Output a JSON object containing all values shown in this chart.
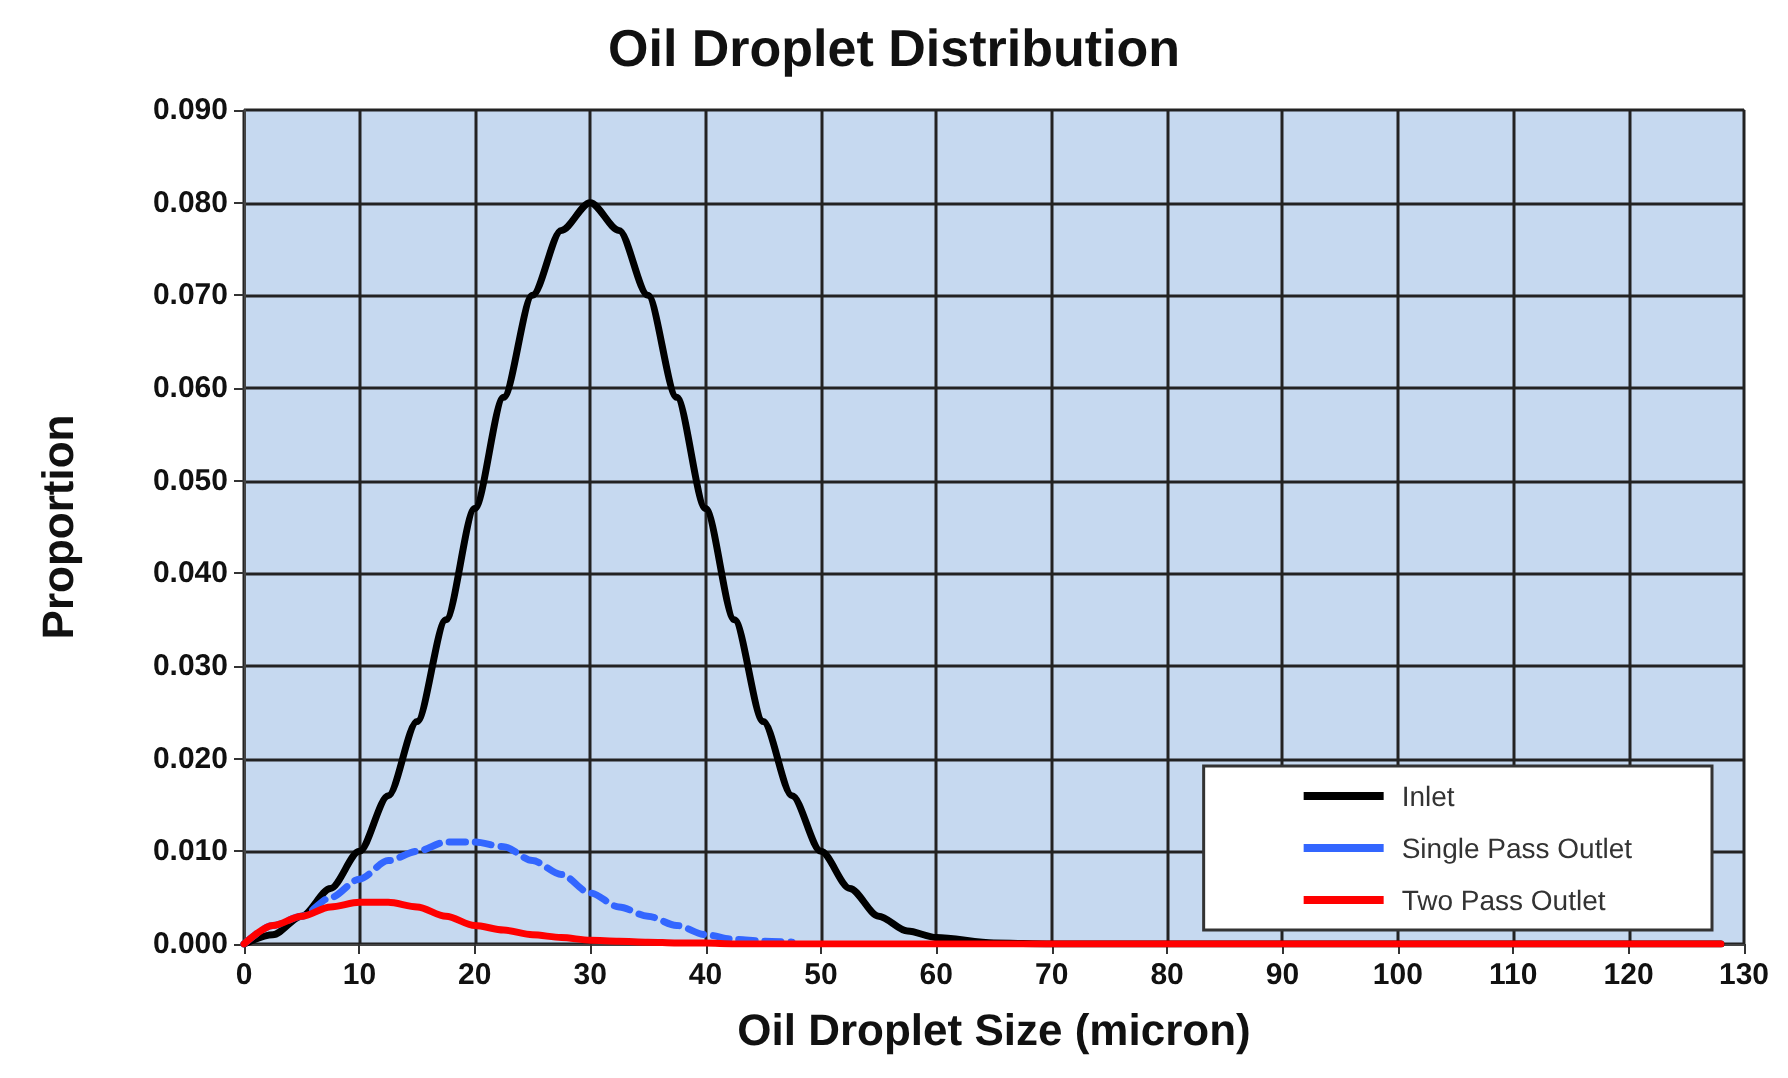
{
  "chart_data": {
    "type": "line",
    "title": "Oil Droplet Distribution",
    "xlabel": "Oil Droplet Size (micron)",
    "ylabel": "Proportion",
    "x": [
      0,
      2.5,
      5,
      7.5,
      10,
      12.5,
      15,
      17.5,
      20,
      22.5,
      25,
      27.5,
      30,
      32.5,
      35,
      37.5,
      40,
      42.5,
      45,
      47.5,
      50,
      52.5,
      55,
      57.5,
      60,
      65,
      70,
      80,
      90,
      100,
      110,
      120,
      128
    ],
    "series": [
      {
        "name": "Inlet",
        "color": "#000000",
        "line_style": "solid",
        "values": [
          0,
          0.001,
          0.003,
          0.006,
          0.01,
          0.016,
          0.024,
          0.035,
          0.047,
          0.059,
          0.07,
          0.077,
          0.08,
          0.077,
          0.07,
          0.059,
          0.047,
          0.035,
          0.024,
          0.016,
          0.01,
          0.006,
          0.003,
          0.0014,
          0.0007,
          0.0001,
          0,
          0,
          0,
          0,
          0,
          0,
          0
        ]
      },
      {
        "name": "Single Pass Outlet",
        "color": "#3366ff",
        "line_style": "dashed",
        "values": [
          0,
          0.002,
          0.003,
          0.005,
          0.007,
          0.009,
          0.01,
          0.011,
          0.011,
          0.0105,
          0.009,
          0.0075,
          0.0055,
          0.004,
          0.003,
          0.002,
          0.001,
          0.0005,
          0.0003,
          0.0002,
          null,
          null,
          null,
          null,
          null,
          null,
          null,
          null,
          null,
          null,
          null,
          null,
          null
        ]
      },
      {
        "name": "Two Pass Outlet",
        "color": "#ff0000",
        "line_style": "solid",
        "values": [
          0,
          0.002,
          0.003,
          0.004,
          0.0045,
          0.0045,
          0.004,
          0.003,
          0.002,
          0.0015,
          0.001,
          0.0007,
          0.0004,
          0.0003,
          0.0002,
          0.0001,
          0.0001,
          0,
          0,
          0,
          0,
          0,
          0,
          0,
          0,
          0,
          0,
          0,
          0,
          0,
          0,
          0,
          0
        ]
      }
    ],
    "xlim": [
      0,
      130
    ],
    "xticks": [
      0,
      10,
      20,
      30,
      40,
      50,
      60,
      70,
      80,
      90,
      100,
      110,
      120,
      130
    ],
    "ylim": [
      0,
      0.09
    ],
    "yticks": [
      {
        "value": 0,
        "label": "0.000"
      },
      {
        "value": 0.01,
        "label": "0.010"
      },
      {
        "value": 0.02,
        "label": "0.020"
      },
      {
        "value": 0.03,
        "label": "0.030"
      },
      {
        "value": 0.04,
        "label": "0.040"
      },
      {
        "value": 0.05,
        "label": "0.050"
      },
      {
        "value": 0.06,
        "label": "0.060"
      },
      {
        "value": 0.07,
        "label": "0.070"
      },
      {
        "value": 0.08,
        "label": "0.080"
      },
      {
        "value": 0.09,
        "label": "0.090"
      }
    ],
    "grid": true,
    "legend": "bottom right",
    "marker": "none"
  }
}
